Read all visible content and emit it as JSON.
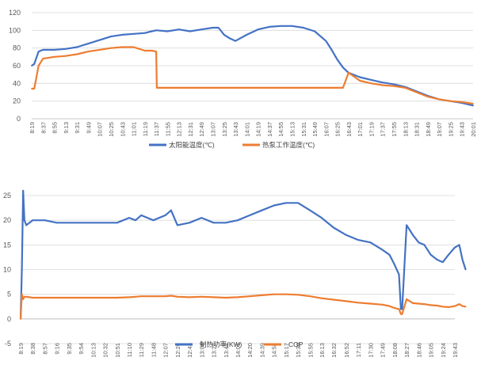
{
  "chart_data": [
    {
      "type": "line",
      "title": "",
      "xlabel": "",
      "ylabel": "",
      "ylim": [
        0,
        120
      ],
      "yticks": [
        0,
        20,
        40,
        60,
        80,
        100,
        120
      ],
      "grid": true,
      "legend_position": "bottom",
      "x_tick_labels": [
        "8:19",
        "8:37",
        "8:55",
        "9:13",
        "9:31",
        "9:49",
        "10:07",
        "10:25",
        "10:43",
        "11:01",
        "11:19",
        "11:37",
        "11:55",
        "12:13",
        "12:31",
        "12:49",
        "13:07",
        "13:25",
        "13:43",
        "14:01",
        "14:19",
        "14:37",
        "14:55",
        "15:13",
        "15:31",
        "15:49",
        "16:07",
        "16:25",
        "16:43",
        "17:01",
        "17:19",
        "17:37",
        "17:55",
        "18:13",
        "18:31",
        "18:49",
        "19:07",
        "19:25",
        "19:43",
        "20:01"
      ],
      "x": [
        "8:19",
        "8:23",
        "8:30",
        "8:37",
        "8:55",
        "9:13",
        "9:31",
        "9:49",
        "10:07",
        "10:25",
        "10:43",
        "11:01",
        "11:19",
        "11:30",
        "11:37",
        "11:38",
        "11:55",
        "12:13",
        "12:31",
        "12:49",
        "13:07",
        "13:16",
        "13:25",
        "13:34",
        "13:43",
        "14:01",
        "14:19",
        "14:37",
        "14:55",
        "15:13",
        "15:31",
        "15:49",
        "16:07",
        "16:16",
        "16:25",
        "16:34",
        "16:43",
        "17:01",
        "17:19",
        "17:37",
        "17:55",
        "18:13",
        "18:31",
        "18:49",
        "19:07",
        "19:25",
        "19:43",
        "20:01"
      ],
      "series": [
        {
          "name": "太阳能温度(℃)",
          "color": "#4472C4",
          "values": [
            60,
            62,
            76,
            78,
            78,
            79,
            81,
            85,
            89,
            93,
            95,
            96,
            97,
            99,
            100,
            100,
            99,
            101,
            99,
            101,
            103,
            103,
            95,
            91,
            88,
            95,
            101,
            104,
            105,
            105,
            103,
            99,
            88,
            78,
            67,
            58,
            52,
            47,
            44,
            41,
            39,
            36,
            31,
            26,
            22,
            20,
            18,
            15
          ]
        },
        {
          "name": "热泵工作温度(℃)",
          "color": "#ED7D31",
          "values": [
            34,
            34,
            60,
            68,
            70,
            71,
            73,
            76,
            78,
            80,
            81,
            81,
            77,
            77,
            76,
            35,
            35,
            35,
            35,
            35,
            35,
            35,
            35,
            35,
            35,
            35,
            35,
            35,
            35,
            35,
            35,
            35,
            35,
            35,
            35,
            35,
            52,
            43,
            40,
            38,
            37,
            35,
            30,
            25,
            22,
            20,
            19,
            17
          ]
        }
      ]
    },
    {
      "type": "line",
      "title": "",
      "xlabel": "",
      "ylabel": "",
      "ylim": [
        -5,
        25
      ],
      "yticks": [
        -5,
        0,
        5,
        10,
        15,
        20,
        25
      ],
      "grid": true,
      "legend_position": "bottom",
      "x_tick_labels": [
        "8:19",
        "8:38",
        "8:57",
        "9:16",
        "9:35",
        "9:54",
        "10:13",
        "10:32",
        "10:51",
        "11:10",
        "11:29",
        "11:48",
        "12:07",
        "12:26",
        "12:45",
        "13:04",
        "13:23",
        "13:42",
        "14:01",
        "14:20",
        "14:39",
        "14:58",
        "15:17",
        "15:36",
        "15:55",
        "16:13",
        "16:32",
        "16:52",
        "17:11",
        "17:30",
        "17:49",
        "18:08",
        "18:27",
        "18:46",
        "19:05",
        "19:24",
        "19:43"
      ],
      "x": [
        "8:19",
        "8:21",
        "8:23",
        "8:25",
        "8:28",
        "8:38",
        "8:57",
        "9:16",
        "9:35",
        "9:54",
        "10:13",
        "10:32",
        "10:51",
        "11:10",
        "11:20",
        "11:29",
        "11:48",
        "12:07",
        "12:16",
        "12:26",
        "12:45",
        "13:04",
        "13:23",
        "13:42",
        "14:01",
        "14:20",
        "14:39",
        "14:58",
        "15:17",
        "15:36",
        "15:55",
        "16:13",
        "16:32",
        "16:52",
        "17:11",
        "17:30",
        "17:49",
        "18:00",
        "18:08",
        "18:15",
        "18:18",
        "18:20",
        "18:27",
        "18:37",
        "18:46",
        "18:55",
        "19:05",
        "19:15",
        "19:24",
        "19:33",
        "19:43",
        "19:50",
        "19:55",
        "20:00"
      ],
      "series": [
        {
          "name": "制热功率(KW)",
          "color": "#4472C4",
          "values": [
            0,
            10,
            26,
            20,
            19,
            20,
            20,
            19.5,
            19.5,
            19.5,
            19.5,
            19.5,
            19.5,
            20.5,
            20,
            21,
            20,
            21,
            22,
            19,
            19.5,
            20.5,
            19.5,
            19.5,
            20,
            21,
            22,
            23,
            23.5,
            23.5,
            22,
            20.5,
            18.5,
            17,
            16,
            15.5,
            14,
            13,
            11,
            9,
            2,
            2,
            19,
            17,
            15.5,
            15,
            13,
            12,
            11.5,
            13,
            14.5,
            15,
            12,
            10
          ]
        },
        {
          "name": "COP",
          "color": "#ED7D31",
          "values": [
            0,
            5,
            4,
            4.5,
            4.5,
            4.3,
            4.3,
            4.3,
            4.3,
            4.3,
            4.3,
            4.3,
            4.3,
            4.4,
            4.5,
            4.6,
            4.6,
            4.6,
            4.7,
            4.5,
            4.4,
            4.5,
            4.4,
            4.3,
            4.4,
            4.6,
            4.8,
            5,
            5,
            4.9,
            4.6,
            4.2,
            3.9,
            3.6,
            3.3,
            3.1,
            2.9,
            2.6,
            2.2,
            2,
            1,
            1,
            4,
            3.2,
            3.1,
            3,
            2.8,
            2.7,
            2.5,
            2.4,
            2.6,
            3,
            2.6,
            2.5
          ]
        }
      ]
    }
  ]
}
